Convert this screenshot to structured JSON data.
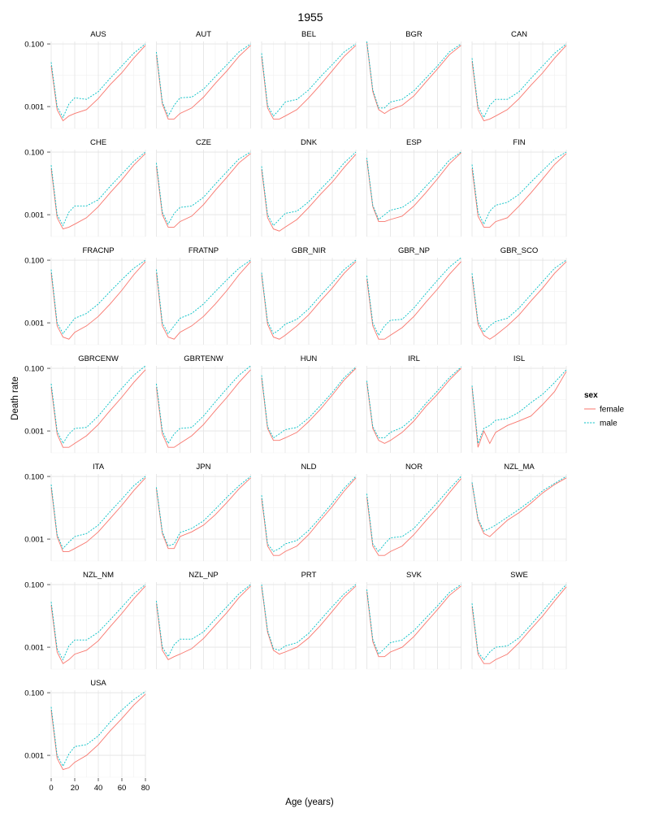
{
  "chart_data": {
    "type": "line",
    "title": "1955",
    "xlabel": "Age (years)",
    "ylabel": "Death rate",
    "y_scale": "log10",
    "xlim": [
      0,
      80
    ],
    "ylim": [
      0.0002,
      0.12
    ],
    "x_ticks": [
      0,
      20,
      40,
      60,
      80
    ],
    "x_tick_labels": [
      "0",
      "20",
      "40",
      "60",
      "80"
    ],
    "y_ticks": [
      0.001,
      0.1
    ],
    "y_tick_labels": [
      "0.001",
      "0.100"
    ],
    "grid": true,
    "legend": {
      "title": "sex",
      "position": "right",
      "entries": [
        {
          "label": "female",
          "color": "#F8766D",
          "linetype": "solid"
        },
        {
          "label": "male",
          "color": "#00BFC4",
          "linetype": "dotted"
        }
      ]
    },
    "colors": {
      "female": "#F8766D",
      "male": "#00BFC4"
    },
    "x": [
      0,
      5,
      10,
      15,
      20,
      30,
      40,
      50,
      60,
      70,
      80
    ],
    "panels": [
      {
        "name": "AUS",
        "female": [
          0.02,
          0.0008,
          0.00035,
          0.0005,
          0.0006,
          0.0008,
          0.0018,
          0.005,
          0.012,
          0.035,
          0.09
        ],
        "male": [
          0.026,
          0.001,
          0.00045,
          0.0012,
          0.0019,
          0.0017,
          0.003,
          0.008,
          0.02,
          0.05,
          0.1
        ]
      },
      {
        "name": "AUT",
        "female": [
          0.045,
          0.0012,
          0.0004,
          0.0004,
          0.0006,
          0.0009,
          0.002,
          0.0055,
          0.014,
          0.04,
          0.09
        ],
        "male": [
          0.055,
          0.0014,
          0.0005,
          0.0011,
          0.0019,
          0.002,
          0.0036,
          0.009,
          0.022,
          0.055,
          0.1
        ]
      },
      {
        "name": "BEL",
        "female": [
          0.04,
          0.0009,
          0.0004,
          0.0004,
          0.0005,
          0.0008,
          0.0019,
          0.005,
          0.014,
          0.04,
          0.09
        ],
        "male": [
          0.05,
          0.0011,
          0.0005,
          0.0008,
          0.0014,
          0.0017,
          0.0034,
          0.009,
          0.022,
          0.055,
          0.1
        ]
      },
      {
        "name": "BGR",
        "female": [
          0.11,
          0.003,
          0.0008,
          0.0006,
          0.0008,
          0.0011,
          0.0022,
          0.006,
          0.016,
          0.045,
          0.09
        ],
        "male": [
          0.12,
          0.0035,
          0.0009,
          0.0009,
          0.0014,
          0.0017,
          0.0032,
          0.008,
          0.02,
          0.055,
          0.1
        ]
      },
      {
        "name": "CAN",
        "female": [
          0.028,
          0.0008,
          0.00035,
          0.0004,
          0.0005,
          0.0008,
          0.0018,
          0.0048,
          0.012,
          0.035,
          0.09
        ],
        "male": [
          0.035,
          0.001,
          0.00045,
          0.0011,
          0.0017,
          0.0017,
          0.003,
          0.008,
          0.02,
          0.05,
          0.1
        ]
      },
      {
        "name": "CHE",
        "female": [
          0.03,
          0.0008,
          0.00035,
          0.0004,
          0.0005,
          0.0008,
          0.0018,
          0.005,
          0.013,
          0.038,
          0.09
        ],
        "male": [
          0.038,
          0.001,
          0.00045,
          0.0012,
          0.0019,
          0.0019,
          0.003,
          0.008,
          0.02,
          0.05,
          0.1
        ]
      },
      {
        "name": "CZE",
        "female": [
          0.035,
          0.001,
          0.0004,
          0.0004,
          0.0006,
          0.0009,
          0.0021,
          0.006,
          0.016,
          0.045,
          0.09
        ],
        "male": [
          0.045,
          0.0012,
          0.0005,
          0.0011,
          0.0017,
          0.0019,
          0.0036,
          0.0095,
          0.024,
          0.06,
          0.1
        ]
      },
      {
        "name": "DNK",
        "female": [
          0.028,
          0.0008,
          0.00035,
          0.0003,
          0.0004,
          0.0007,
          0.0017,
          0.0045,
          0.011,
          0.032,
          0.085
        ],
        "male": [
          0.035,
          0.001,
          0.00045,
          0.0007,
          0.0011,
          0.0013,
          0.0026,
          0.0065,
          0.016,
          0.045,
          0.1
        ]
      },
      {
        "name": "ESP",
        "female": [
          0.055,
          0.0018,
          0.0006,
          0.0006,
          0.0007,
          0.0009,
          0.0019,
          0.005,
          0.014,
          0.042,
          0.095
        ],
        "male": [
          0.065,
          0.002,
          0.0007,
          0.001,
          0.0014,
          0.0017,
          0.0031,
          0.008,
          0.02,
          0.055,
          0.1
        ]
      },
      {
        "name": "FIN",
        "female": [
          0.03,
          0.0009,
          0.0004,
          0.0004,
          0.0006,
          0.0008,
          0.0019,
          0.005,
          0.014,
          0.04,
          0.09
        ],
        "male": [
          0.04,
          0.0012,
          0.0005,
          0.0013,
          0.002,
          0.0025,
          0.0045,
          0.011,
          0.026,
          0.06,
          0.1
        ]
      },
      {
        "name": "FRACNP",
        "female": [
          0.04,
          0.0008,
          0.00035,
          0.0003,
          0.0005,
          0.0008,
          0.0016,
          0.004,
          0.011,
          0.034,
          0.09
        ],
        "male": [
          0.05,
          0.001,
          0.00045,
          0.0008,
          0.0014,
          0.002,
          0.004,
          0.01,
          0.024,
          0.055,
          0.1
        ]
      },
      {
        "name": "FRATNP",
        "female": [
          0.04,
          0.0008,
          0.00035,
          0.0003,
          0.0005,
          0.0008,
          0.0016,
          0.004,
          0.011,
          0.034,
          0.09
        ],
        "male": [
          0.05,
          0.001,
          0.00045,
          0.0008,
          0.0014,
          0.002,
          0.004,
          0.01,
          0.024,
          0.055,
          0.1
        ]
      },
      {
        "name": "GBR_NIR",
        "female": [
          0.035,
          0.0009,
          0.00035,
          0.0003,
          0.0004,
          0.0008,
          0.0018,
          0.005,
          0.013,
          0.038,
          0.09
        ],
        "male": [
          0.04,
          0.0011,
          0.00045,
          0.0006,
          0.0009,
          0.0013,
          0.0028,
          0.0075,
          0.019,
          0.05,
          0.1
        ]
      },
      {
        "name": "GBR_NP",
        "female": [
          0.025,
          0.0008,
          0.0003,
          0.0003,
          0.0004,
          0.0007,
          0.0016,
          0.0045,
          0.012,
          0.035,
          0.09
        ],
        "male": [
          0.032,
          0.001,
          0.0004,
          0.0008,
          0.0012,
          0.0013,
          0.003,
          0.0085,
          0.023,
          0.06,
          0.12
        ]
      },
      {
        "name": "GBR_SCO",
        "female": [
          0.03,
          0.0009,
          0.0004,
          0.0003,
          0.0004,
          0.0008,
          0.0018,
          0.005,
          0.013,
          0.038,
          0.09
        ],
        "male": [
          0.038,
          0.0011,
          0.0005,
          0.0008,
          0.0011,
          0.0014,
          0.003,
          0.008,
          0.021,
          0.055,
          0.1
        ]
      },
      {
        "name": "GBRCENW",
        "female": [
          0.025,
          0.0008,
          0.0003,
          0.0003,
          0.0004,
          0.0007,
          0.0016,
          0.0045,
          0.012,
          0.035,
          0.09
        ],
        "male": [
          0.032,
          0.001,
          0.0004,
          0.0008,
          0.0012,
          0.0013,
          0.003,
          0.0085,
          0.023,
          0.06,
          0.12
        ]
      },
      {
        "name": "GBRTENW",
        "female": [
          0.025,
          0.0008,
          0.0003,
          0.0003,
          0.0004,
          0.0007,
          0.0016,
          0.0045,
          0.012,
          0.035,
          0.09
        ],
        "male": [
          0.032,
          0.001,
          0.0004,
          0.0008,
          0.0012,
          0.0013,
          0.003,
          0.0085,
          0.023,
          0.06,
          0.12
        ]
      },
      {
        "name": "HUN",
        "female": [
          0.05,
          0.0012,
          0.0005,
          0.0005,
          0.0006,
          0.0009,
          0.002,
          0.005,
          0.014,
          0.042,
          0.1
        ],
        "male": [
          0.06,
          0.0014,
          0.0006,
          0.0008,
          0.0011,
          0.0013,
          0.0026,
          0.0065,
          0.017,
          0.05,
          0.11
        ]
      },
      {
        "name": "IRL",
        "female": [
          0.035,
          0.0012,
          0.0005,
          0.0004,
          0.0005,
          0.0009,
          0.0021,
          0.006,
          0.015,
          0.042,
          0.1
        ],
        "male": [
          0.04,
          0.0014,
          0.0006,
          0.0006,
          0.0009,
          0.0013,
          0.0027,
          0.0075,
          0.019,
          0.05,
          0.11
        ]
      },
      {
        "name": "ISL",
        "female": [
          0.025,
          0.0003,
          0.001,
          0.0004,
          0.0009,
          0.0015,
          0.0021,
          0.003,
          0.007,
          0.018,
          0.08
        ],
        "male": [
          0.028,
          0.0004,
          0.0012,
          0.0015,
          0.0022,
          0.0025,
          0.004,
          0.008,
          0.015,
          0.035,
          0.09
        ]
      },
      {
        "name": "ITA",
        "female": [
          0.045,
          0.0012,
          0.0004,
          0.0004,
          0.0005,
          0.0008,
          0.0017,
          0.0045,
          0.012,
          0.035,
          0.09
        ],
        "male": [
          0.055,
          0.0014,
          0.0005,
          0.0008,
          0.0012,
          0.0015,
          0.0028,
          0.0075,
          0.019,
          0.05,
          0.1
        ]
      },
      {
        "name": "JPN",
        "female": [
          0.04,
          0.0015,
          0.0005,
          0.0005,
          0.0012,
          0.0017,
          0.0028,
          0.006,
          0.015,
          0.04,
          0.09
        ],
        "male": [
          0.045,
          0.0017,
          0.0006,
          0.0007,
          0.0016,
          0.0022,
          0.0038,
          0.009,
          0.022,
          0.05,
          0.1
        ]
      },
      {
        "name": "NLD",
        "female": [
          0.02,
          0.0006,
          0.0003,
          0.0003,
          0.0004,
          0.0006,
          0.0014,
          0.004,
          0.011,
          0.034,
          0.09
        ],
        "male": [
          0.025,
          0.0007,
          0.0004,
          0.0005,
          0.0007,
          0.0009,
          0.0019,
          0.005,
          0.014,
          0.042,
          0.1
        ]
      },
      {
        "name": "NOR",
        "female": [
          0.022,
          0.0006,
          0.0003,
          0.0003,
          0.0004,
          0.0006,
          0.0014,
          0.0038,
          0.01,
          0.03,
          0.085
        ],
        "male": [
          0.028,
          0.0007,
          0.0004,
          0.0007,
          0.0011,
          0.0012,
          0.0022,
          0.0058,
          0.015,
          0.04,
          0.1
        ]
      },
      {
        "name": "NZL_MA",
        "female": [
          0.06,
          0.004,
          0.0015,
          0.0012,
          0.0018,
          0.004,
          0.007,
          0.014,
          0.03,
          0.055,
          0.09
        ],
        "male": [
          0.065,
          0.0045,
          0.0018,
          0.0022,
          0.0028,
          0.005,
          0.009,
          0.017,
          0.035,
          0.06,
          0.1
        ]
      },
      {
        "name": "NZL_NM",
        "female": [
          0.022,
          0.0007,
          0.0003,
          0.0004,
          0.0006,
          0.0008,
          0.0016,
          0.0045,
          0.012,
          0.035,
          0.09
        ],
        "male": [
          0.028,
          0.0009,
          0.0004,
          0.0011,
          0.0017,
          0.0017,
          0.003,
          0.0075,
          0.019,
          0.05,
          0.1
        ]
      },
      {
        "name": "NZL_NP",
        "female": [
          0.025,
          0.0008,
          0.0004,
          0.0005,
          0.0006,
          0.0009,
          0.0019,
          0.005,
          0.013,
          0.038,
          0.09
        ],
        "male": [
          0.03,
          0.001,
          0.0005,
          0.0012,
          0.0018,
          0.0018,
          0.0031,
          0.008,
          0.02,
          0.05,
          0.1
        ]
      },
      {
        "name": "PRT",
        "female": [
          0.09,
          0.003,
          0.0008,
          0.0006,
          0.0007,
          0.001,
          0.002,
          0.005,
          0.014,
          0.04,
          0.09
        ],
        "male": [
          0.1,
          0.0035,
          0.0009,
          0.0008,
          0.0011,
          0.0014,
          0.0028,
          0.0075,
          0.02,
          0.05,
          0.1
        ]
      },
      {
        "name": "SVK",
        "female": [
          0.06,
          0.0015,
          0.0005,
          0.0005,
          0.0007,
          0.001,
          0.0022,
          0.006,
          0.016,
          0.045,
          0.09
        ],
        "male": [
          0.07,
          0.0018,
          0.0006,
          0.0009,
          0.0014,
          0.0017,
          0.0034,
          0.0085,
          0.021,
          0.055,
          0.1
        ]
      },
      {
        "name": "SWE",
        "female": [
          0.02,
          0.0006,
          0.0003,
          0.0003,
          0.0004,
          0.0006,
          0.0014,
          0.0038,
          0.01,
          0.03,
          0.085
        ],
        "male": [
          0.025,
          0.0007,
          0.0004,
          0.0007,
          0.001,
          0.0011,
          0.002,
          0.0052,
          0.014,
          0.04,
          0.1
        ]
      },
      {
        "name": "USA",
        "female": [
          0.028,
          0.0008,
          0.00035,
          0.0004,
          0.0006,
          0.001,
          0.0022,
          0.006,
          0.015,
          0.04,
          0.09
        ],
        "male": [
          0.035,
          0.001,
          0.00045,
          0.0011,
          0.0019,
          0.0022,
          0.0042,
          0.0115,
          0.028,
          0.06,
          0.11
        ]
      }
    ]
  }
}
